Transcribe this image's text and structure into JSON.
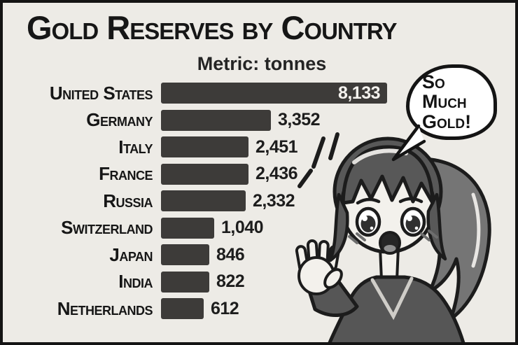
{
  "header": {
    "title": "Gold Reserves by Country",
    "subtitle": "Metric: tonnes"
  },
  "speech_bubble": {
    "lines": [
      "So",
      "Much",
      "Gold!"
    ]
  },
  "illustration": {
    "name": "excited-manga-girl",
    "style": "black-and-white manga, waving hand, speech bubble"
  },
  "colors": {
    "background": "#edebe6",
    "frame": "#141414",
    "bar": "#3d3b39",
    "bar_value_inside": "#f4f2ee",
    "text": "#1a1a1a"
  },
  "chart_data": {
    "type": "bar",
    "orientation": "horizontal",
    "title": "Gold Reserves by Country",
    "subtitle": "Metric: tonnes",
    "unit": "tonnes",
    "categories": [
      "United States",
      "Germany",
      "Italy",
      "France",
      "Russia",
      "Switzerland",
      "Japan",
      "India",
      "Netherlands"
    ],
    "values": [
      8133,
      3352,
      2451,
      2436,
      2332,
      1040,
      846,
      822,
      612
    ],
    "value_labels": [
      "8,133",
      "3,352",
      "2,451",
      "2,436",
      "2,332",
      "1,040",
      "846",
      "822",
      "612"
    ],
    "xlim": [
      0,
      8133
    ],
    "bar_color": "#3d3b39",
    "value_inside_bar": [
      "United States"
    ],
    "grid": false,
    "legend": false
  }
}
